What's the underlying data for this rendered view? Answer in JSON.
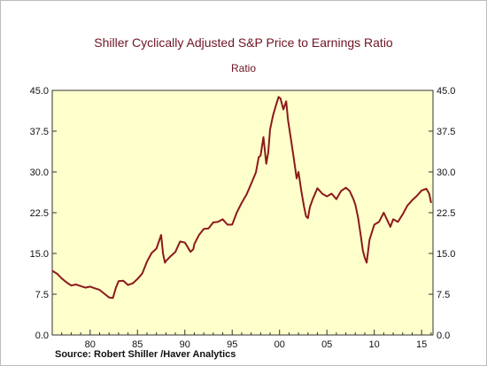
{
  "header": {
    "title": "Shiller Cyclically Adjusted S&P Price to Earnings Ratio",
    "subtitle": "Ratio"
  },
  "footer": {
    "source": "Source:  Robert Shiller /Haver Analytics"
  },
  "colors": {
    "plot_background": "#ffffcc",
    "line": "#8b1a1a",
    "text": "#6e1423"
  },
  "chart_data": {
    "type": "line",
    "title": "Shiller Cyclically Adjusted S&P Price to Earnings Ratio",
    "subtitle": "Ratio",
    "xlabel": "",
    "ylabel": "Ratio",
    "xlim": [
      1976,
      2016.2
    ],
    "ylim": [
      0,
      45
    ],
    "grid": false,
    "y_ticks": [
      0.0,
      7.5,
      15.0,
      22.5,
      30.0,
      37.5,
      45.0
    ],
    "y_tick_labels": [
      "0.0",
      "7.5",
      "15.0",
      "22.5",
      "30.0",
      "37.5",
      "45.0"
    ],
    "x_ticks": [
      1980,
      1985,
      1990,
      1995,
      2000,
      2005,
      2010,
      2015
    ],
    "x_tick_labels": [
      "80",
      "85",
      "90",
      "95",
      "00",
      "05",
      "10",
      "15"
    ],
    "series": [
      {
        "x": [
          1976.0,
          1976.5,
          1977.0,
          1977.5,
          1978.0,
          1978.5,
          1979.0,
          1979.5,
          1980.0,
          1980.5,
          1981.0,
          1981.5,
          1982.0,
          1982.4,
          1982.7,
          1983.0,
          1983.5,
          1984.0,
          1984.5,
          1985.0,
          1985.5,
          1986.0,
          1986.5,
          1987.0,
          1987.5,
          1987.7,
          1987.9,
          1988.0,
          1988.5,
          1989.0,
          1989.5,
          1990.0,
          1990.6,
          1990.9,
          1991.0,
          1991.5,
          1992.0,
          1992.5,
          1993.0,
          1993.5,
          1994.0,
          1994.5,
          1995.0,
          1995.5,
          1996.0,
          1996.5,
          1997.0,
          1997.5,
          1997.8,
          1998.0,
          1998.3,
          1998.6,
          1998.8,
          1999.0,
          1999.3,
          1999.6,
          1999.9,
          2000.1,
          2000.4,
          2000.7,
          2000.9,
          2001.2,
          2001.5,
          2001.8,
          2002.0,
          2002.3,
          2002.6,
          2002.8,
          2003.0,
          2003.2,
          2003.5,
          2004.0,
          2004.5,
          2005.0,
          2005.5,
          2006.0,
          2006.5,
          2007.0,
          2007.4,
          2007.8,
          2008.0,
          2008.3,
          2008.6,
          2008.8,
          2009.0,
          2009.2,
          2009.5,
          2010.0,
          2010.5,
          2011.0,
          2011.4,
          2011.7,
          2012.0,
          2012.5,
          2013.0,
          2013.5,
          2014.0,
          2014.5,
          2015.0,
          2015.5,
          2015.8,
          2016.0
        ],
        "y": [
          11.8,
          11.3,
          10.4,
          9.7,
          9.1,
          9.3,
          9.0,
          8.7,
          8.9,
          8.6,
          8.3,
          7.6,
          6.9,
          6.8,
          8.6,
          9.9,
          10.0,
          9.2,
          9.5,
          10.3,
          11.3,
          13.5,
          15.1,
          15.9,
          18.4,
          15.0,
          13.3,
          13.6,
          14.5,
          15.3,
          17.2,
          17.0,
          15.3,
          15.8,
          16.7,
          18.4,
          19.5,
          19.6,
          20.7,
          20.8,
          21.3,
          20.3,
          20.3,
          22.6,
          24.3,
          25.8,
          27.8,
          29.9,
          32.7,
          33.0,
          36.4,
          31.5,
          33.5,
          37.8,
          40.3,
          42.1,
          43.8,
          43.5,
          41.5,
          43.0,
          39.5,
          36.0,
          32.5,
          28.8,
          30.0,
          26.5,
          23.5,
          21.8,
          21.5,
          23.5,
          25.0,
          27.0,
          26.0,
          25.5,
          26.0,
          25.0,
          26.5,
          27.1,
          26.5,
          25.0,
          24.0,
          21.5,
          18.0,
          15.5,
          14.2,
          13.3,
          17.5,
          20.3,
          20.8,
          22.5,
          21.0,
          19.9,
          21.3,
          20.8,
          22.2,
          23.8,
          24.8,
          25.6,
          26.6,
          26.9,
          26.0,
          24.3
        ]
      }
    ]
  }
}
